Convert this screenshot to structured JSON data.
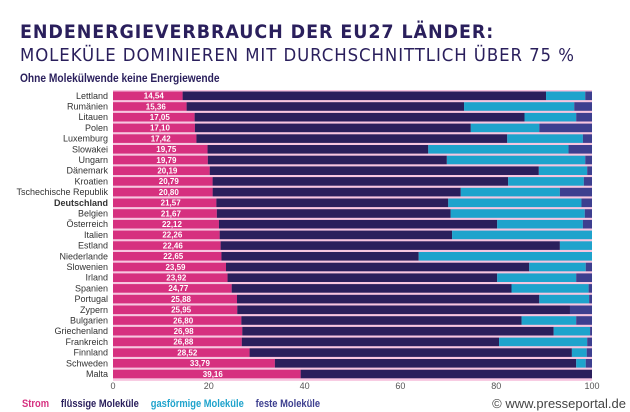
{
  "title": "ENDENERGIEVERBRAUCH DER EU27 LÄNDER:",
  "subtitle": "MOLEKÜLE DOMINIEREN MIT DURCHSCHNITTLICH ÜBER 75 %",
  "caption": "Ohne Molekülwende keine Energiewende",
  "credit": "© www.presseportal.de",
  "colors": {
    "strom": "#d6307f",
    "fluessig": "#2a1f5c",
    "gas": "#1ea3cc",
    "fest": "#3d3f8f",
    "background_band": "#f7c6e0"
  },
  "chart_data": {
    "type": "bar",
    "orientation": "horizontal",
    "stacked": true,
    "xlim": [
      0,
      100
    ],
    "xticks": [
      0,
      20,
      40,
      60,
      80,
      100
    ],
    "legend_position": "bottom-left",
    "highlighted_category": "Deutschland",
    "categories": [
      "Lettland",
      "Rumänien",
      "Litauen",
      "Polen",
      "Luxemburg",
      "Slowakei",
      "Ungarn",
      "Dänemark",
      "Kroatien",
      "Tschechische Republik",
      "Deutschland",
      "Belgien",
      "Österreich",
      "Italien",
      "Estland",
      "Niederlande",
      "Slowenien",
      "Irland",
      "Spanien",
      "Portugal",
      "Zypern",
      "Bulgarien",
      "Griechenland",
      "Frankreich",
      "Finnland",
      "Schweden",
      "Malta"
    ],
    "data_labels": [
      "14,54",
      "15,36",
      "17,05",
      "17,10",
      "17,42",
      "19,75",
      "19,79",
      "20,19",
      "20,79",
      "20,80",
      "21,57",
      "21,67",
      "22,12",
      "22,26",
      "22,46",
      "22,65",
      "23,59",
      "23,92",
      "24,77",
      "25,88",
      "25,95",
      "26,80",
      "26,98",
      "26,88",
      "28,52",
      "33,79",
      "39,16"
    ],
    "series": [
      {
        "name": "Strom",
        "values": [
          14.54,
          15.36,
          17.05,
          17.1,
          17.42,
          19.75,
          19.79,
          20.19,
          20.79,
          20.8,
          21.57,
          21.67,
          22.12,
          22.26,
          22.46,
          22.65,
          23.59,
          23.92,
          24.77,
          25.88,
          25.95,
          26.8,
          26.98,
          26.88,
          28.52,
          33.79,
          39.16
        ]
      },
      {
        "name": "flüssige Moleküle",
        "values": [
          75.9,
          57.9,
          68.9,
          57.6,
          64.9,
          46.1,
          49.9,
          68.7,
          61.7,
          51.8,
          48.4,
          48.8,
          58.1,
          48.5,
          70.8,
          41.2,
          63.3,
          56.3,
          58.4,
          63.1,
          69.5,
          58.5,
          65.0,
          53.7,
          67.3,
          62.9,
          60.8
        ]
      },
      {
        "name": "gasförmige Moleküle",
        "values": [
          8.2,
          23.0,
          10.8,
          14.3,
          15.8,
          29.3,
          28.9,
          10.1,
          15.8,
          20.7,
          27.8,
          28.0,
          17.9,
          29.2,
          6.7,
          36.2,
          11.8,
          16.5,
          16.1,
          10.4,
          0,
          11.4,
          7.6,
          18.4,
          3.1,
          2.0,
          0
        ]
      },
      {
        "name": "feste Moleküle",
        "values": [
          1.4,
          3.7,
          3.3,
          11.0,
          1.9,
          4.9,
          1.4,
          1.0,
          1.7,
          6.7,
          2.2,
          1.5,
          1.9,
          0,
          0,
          0,
          1.3,
          3.3,
          0.7,
          0.6,
          4.6,
          3.3,
          0.4,
          1.0,
          1.1,
          1.3,
          0
        ]
      }
    ]
  }
}
